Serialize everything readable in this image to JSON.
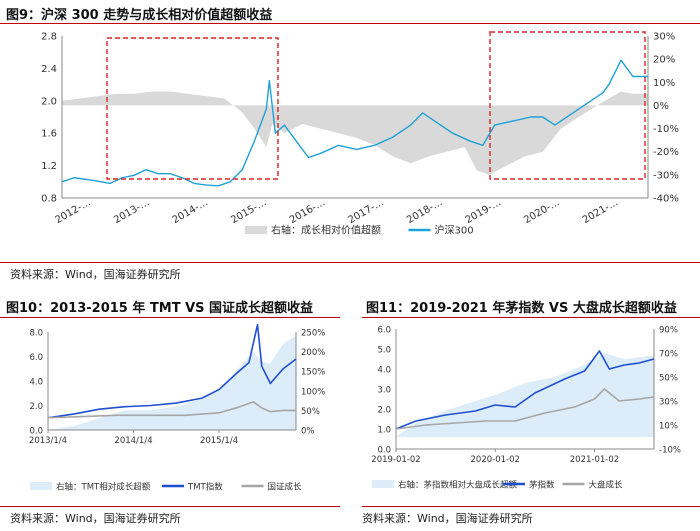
{
  "fig9": {
    "title": "图9：沪深 300 走势与成长相对价值超额收益",
    "source": "资料来源：Wind，国海证券研究所",
    "chart_data": {
      "type": "area",
      "x_ticks": [
        "2012-…",
        "2013-…",
        "2014-…",
        "2015-…",
        "2016-…",
        "2017-…",
        "2018-…",
        "2019-…",
        "2020-…",
        "2021-…"
      ],
      "y_ticks_left": [
        "0.8",
        "1.2",
        "1.6",
        "2.0",
        "2.4",
        "2.8"
      ],
      "y_ticks_right": [
        "-40%",
        "-30%",
        "-20%",
        "-10%",
        "0%",
        "10%",
        "20%",
        "30%"
      ],
      "ylim_left": [
        0.8,
        2.8
      ],
      "ylim_right": [
        -40,
        30
      ],
      "xlim": [
        2012.0,
        2021.75
      ],
      "series": [
        {
          "name": "右轴：成长相对价值超额",
          "axis": "right",
          "type": "area",
          "color": "#d9d9d9",
          "x": [
            2012.0,
            2012.3,
            2012.6,
            2012.9,
            2013.2,
            2013.5,
            2013.8,
            2014.1,
            2014.4,
            2014.7,
            2015.0,
            2015.2,
            2015.4,
            2015.5,
            2015.7,
            2016.0,
            2016.3,
            2016.6,
            2016.9,
            2017.2,
            2017.5,
            2017.8,
            2018.1,
            2018.4,
            2018.7,
            2018.9,
            2019.1,
            2019.4,
            2019.7,
            2020.0,
            2020.3,
            2020.6,
            2020.9,
            2021.1,
            2021.3,
            2021.5,
            2021.75
          ],
          "values": [
            2,
            3,
            4,
            5,
            5,
            6,
            6,
            5,
            4,
            3,
            -3,
            -10,
            -18,
            -8,
            -12,
            -8,
            -10,
            -12,
            -14,
            -17,
            -22,
            -25,
            -22,
            -20,
            -18,
            -28,
            -30,
            -26,
            -22,
            -20,
            -10,
            -5,
            0,
            3,
            6,
            5,
            5
          ]
        },
        {
          "name": "沪深300",
          "axis": "left",
          "type": "line",
          "color": "#1fa1d8",
          "x": [
            2012.0,
            2012.2,
            2012.5,
            2012.8,
            2013.0,
            2013.2,
            2013.4,
            2013.6,
            2013.8,
            2014.0,
            2014.2,
            2014.4,
            2014.6,
            2014.8,
            2015.0,
            2015.2,
            2015.4,
            2015.45,
            2015.55,
            2015.7,
            2015.9,
            2016.1,
            2016.3,
            2016.6,
            2016.9,
            2017.2,
            2017.5,
            2017.8,
            2018.0,
            2018.2,
            2018.5,
            2018.8,
            2019.0,
            2019.2,
            2019.5,
            2019.8,
            2020.0,
            2020.2,
            2020.5,
            2020.8,
            2021.0,
            2021.1,
            2021.3,
            2021.5,
            2021.75
          ],
          "values": [
            1.0,
            1.05,
            1.02,
            0.98,
            1.05,
            1.08,
            1.15,
            1.1,
            1.1,
            1.05,
            0.98,
            0.96,
            0.95,
            1.0,
            1.15,
            1.5,
            1.9,
            2.25,
            1.6,
            1.7,
            1.5,
            1.3,
            1.35,
            1.45,
            1.4,
            1.45,
            1.55,
            1.7,
            1.85,
            1.75,
            1.6,
            1.5,
            1.45,
            1.7,
            1.75,
            1.8,
            1.8,
            1.7,
            1.85,
            2.0,
            2.1,
            2.2,
            2.5,
            2.3,
            2.3
          ]
        }
      ],
      "legend": [
        {
          "label": "右轴：成长相对价值超额",
          "color": "#d9d9d9",
          "kind": "box"
        },
        {
          "label": "沪深300",
          "color": "#1fa1d8",
          "kind": "line"
        }
      ]
    }
  },
  "fig10": {
    "title": "图10：2013-2015 年 TMT VS  国证成长超额收益",
    "source": "资料来源：Wind，国海证券研究所",
    "chart_data": {
      "type": "area",
      "x_ticks": [
        "2013/1/4",
        "2014/1/4",
        "2015/1/4"
      ],
      "x_tick_pos": [
        2013.0,
        2014.0,
        2015.0
      ],
      "y_ticks_left": [
        "0.0",
        "2.0",
        "4.0",
        "6.0",
        "8.0"
      ],
      "y_ticks_right": [
        "0%",
        "50%",
        "100%",
        "150%",
        "200%",
        "250%"
      ],
      "ylim_left": [
        0,
        8
      ],
      "ylim_right": [
        0,
        250
      ],
      "xlim": [
        2013.0,
        2015.9
      ],
      "series": [
        {
          "name": "右轴：TMT相对成长超额",
          "axis": "right",
          "type": "area",
          "color": "#dcecf9",
          "x": [
            2013.0,
            2013.3,
            2013.6,
            2013.9,
            2014.2,
            2014.5,
            2014.8,
            2015.0,
            2015.2,
            2015.4,
            2015.5,
            2015.6,
            2015.75,
            2015.9
          ],
          "values": [
            0,
            10,
            30,
            50,
            50,
            60,
            80,
            100,
            150,
            200,
            175,
            170,
            220,
            240
          ]
        },
        {
          "name": "TMT指数",
          "axis": "left",
          "type": "line",
          "color": "#1f4fd1",
          "x": [
            2013.0,
            2013.3,
            2013.6,
            2013.9,
            2014.2,
            2014.5,
            2014.8,
            2015.0,
            2015.2,
            2015.35,
            2015.45,
            2015.5,
            2015.6,
            2015.75,
            2015.9
          ],
          "values": [
            1.0,
            1.3,
            1.7,
            1.9,
            2.0,
            2.2,
            2.6,
            3.3,
            4.6,
            5.5,
            8.6,
            5.2,
            3.8,
            5.0,
            5.8
          ]
        },
        {
          "name": "国证成长",
          "axis": "left",
          "type": "line",
          "color": "#a6a6a6",
          "x": [
            2013.0,
            2013.4,
            2013.8,
            2014.2,
            2014.6,
            2015.0,
            2015.2,
            2015.4,
            2015.5,
            2015.6,
            2015.75,
            2015.9
          ],
          "values": [
            1.0,
            1.1,
            1.2,
            1.2,
            1.2,
            1.4,
            1.8,
            2.3,
            1.8,
            1.5,
            1.6,
            1.6
          ]
        }
      ],
      "legend": [
        {
          "label": "右轴：TMT相对成长超额",
          "color": "#dcecf9",
          "kind": "box"
        },
        {
          "label": "TMT指数",
          "color": "#1f4fd1",
          "kind": "line"
        },
        {
          "label": "国证成长",
          "color": "#a6a6a6",
          "kind": "line"
        }
      ]
    }
  },
  "fig11": {
    "title": "图11：2019-2021 年茅指数  VS  大盘成长超额收益",
    "source": "资料来源：Wind，国海证券研究所",
    "chart_data": {
      "type": "area",
      "x_ticks": [
        "2019-01-02",
        "2020-01-02",
        "2021-01-02"
      ],
      "x_tick_pos": [
        2019.0,
        2020.0,
        2021.0
      ],
      "y_ticks_left": [
        "0.0",
        "1.0",
        "2.0",
        "3.0",
        "4.0",
        "5.0",
        "6.0"
      ],
      "y_ticks_right": [
        "-10%",
        "10%",
        "30%",
        "50%",
        "70%",
        "90%"
      ],
      "ylim_left": [
        0,
        6
      ],
      "ylim_right": [
        -10,
        90
      ],
      "xlim": [
        2019.0,
        2021.6
      ],
      "series": [
        {
          "name": "右轴：茅指数相对大盘成长超额",
          "axis": "right",
          "type": "area",
          "color": "#dcecf9",
          "x": [
            2019.0,
            2019.2,
            2019.5,
            2019.8,
            2020.0,
            2020.3,
            2020.6,
            2020.9,
            2021.1,
            2021.3,
            2021.6
          ],
          "values": [
            0,
            12,
            22,
            30,
            35,
            45,
            50,
            60,
            70,
            65,
            68
          ]
        },
        {
          "name": "茅指数",
          "axis": "left",
          "type": "line",
          "color": "#1f4fd1",
          "x": [
            2019.0,
            2019.2,
            2019.5,
            2019.8,
            2020.0,
            2020.2,
            2020.4,
            2020.7,
            2020.9,
            2021.05,
            2021.15,
            2021.3,
            2021.45,
            2021.6
          ],
          "values": [
            1.0,
            1.4,
            1.7,
            1.9,
            2.2,
            2.1,
            2.8,
            3.5,
            3.9,
            4.9,
            4.0,
            4.2,
            4.3,
            4.5
          ]
        },
        {
          "name": "大盘成长",
          "axis": "left",
          "type": "line",
          "color": "#a6a6a6",
          "x": [
            2019.0,
            2019.3,
            2019.6,
            2019.9,
            2020.2,
            2020.5,
            2020.8,
            2021.0,
            2021.1,
            2021.25,
            2021.45,
            2021.6
          ],
          "values": [
            1.0,
            1.2,
            1.3,
            1.4,
            1.4,
            1.8,
            2.1,
            2.5,
            3.0,
            2.4,
            2.5,
            2.6
          ]
        }
      ],
      "legend": [
        {
          "label": "右轴：茅指数相对大盘成长超额",
          "color": "#dcecf9",
          "kind": "box"
        },
        {
          "label": "茅指数",
          "color": "#1f4fd1",
          "kind": "line"
        },
        {
          "label": "大盘成长",
          "color": "#a6a6a6",
          "kind": "line"
        }
      ]
    }
  }
}
